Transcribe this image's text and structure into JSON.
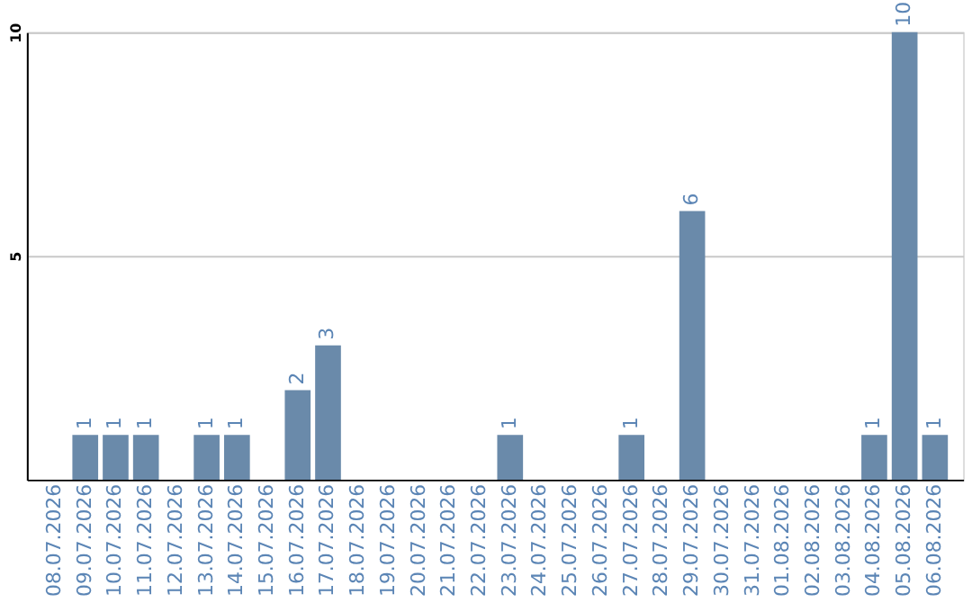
{
  "chart_data": {
    "type": "bar",
    "categories": [
      "08.07.2026",
      "09.07.2026",
      "10.07.2026",
      "11.07.2026",
      "12.07.2026",
      "13.07.2026",
      "14.07.2026",
      "15.07.2026",
      "16.07.2026",
      "17.07.2026",
      "18.07.2026",
      "19.07.2026",
      "20.07.2026",
      "21.07.2026",
      "22.07.2026",
      "23.07.2026",
      "24.07.2026",
      "25.07.2026",
      "26.07.2026",
      "27.07.2026",
      "28.07.2026",
      "29.07.2026",
      "30.07.2026",
      "31.07.2026",
      "01.08.2026",
      "02.08.2026",
      "03.08.2026",
      "04.08.2026",
      "05.08.2026",
      "06.08.2026"
    ],
    "values": [
      0,
      1,
      1,
      1,
      0,
      1,
      1,
      0,
      2,
      3,
      0,
      0,
      0,
      0,
      0,
      1,
      0,
      0,
      0,
      1,
      0,
      6,
      0,
      0,
      0,
      0,
      0,
      1,
      10,
      1
    ],
    "value_labels": [
      null,
      "1",
      "1",
      "1",
      null,
      "1",
      "1",
      null,
      "2",
      "3",
      null,
      null,
      null,
      null,
      null,
      "1",
      null,
      null,
      null,
      "1",
      null,
      "6",
      null,
      null,
      null,
      null,
      null,
      "1",
      "10",
      "1"
    ],
    "color": "#6a8aaa",
    "ylim": [
      0,
      10
    ],
    "yticks": [
      5,
      10
    ],
    "grid": "y"
  }
}
